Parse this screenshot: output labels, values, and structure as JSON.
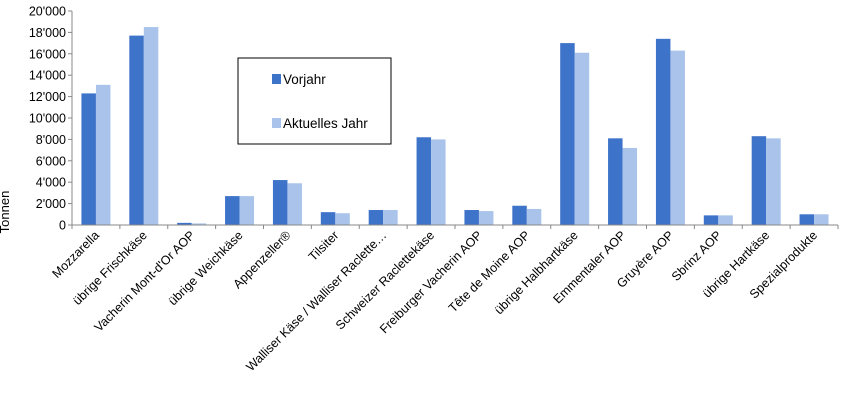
{
  "chart_data": {
    "type": "bar",
    "title": "",
    "xlabel": "",
    "ylabel": "Tonnen",
    "ylim": [
      0,
      20000
    ],
    "ytick_labels": [
      "0",
      "2'000",
      "4'000",
      "6'000",
      "8'000",
      "10'000",
      "12'000",
      "14'000",
      "16'000",
      "18'000",
      "20'000"
    ],
    "grid": false,
    "legend_position": "upper-left-center",
    "categories": [
      "Mozzarella",
      "übrige Frischkäse",
      "Vacherin Mont-d'Or AOP",
      "übrige Weichkäse",
      "Appenzeller®",
      "Tilsiter",
      "Walliser Käse / Walliser Raclette…",
      "Schweizer Raclettekäse",
      "Freiburger Vacherin AOP",
      "Tête de Moine AOP",
      "übrige Halbhartkäse",
      "Emmentaler AOP",
      "Gruyère AOP",
      "Sbrinz AOP",
      "übrige Hartkäse",
      "Spezialprodukte"
    ],
    "series": [
      {
        "name": "Vorjahr",
        "color": "#3d73c9",
        "values": [
          12300,
          17700,
          200,
          2700,
          4200,
          1200,
          1400,
          8200,
          1400,
          1800,
          17000,
          8100,
          17400,
          900,
          8300,
          1000
        ]
      },
      {
        "name": "Aktuelles Jahr",
        "color": "#a9c3ea",
        "values": [
          13100,
          18500,
          150,
          2700,
          3900,
          1100,
          1400,
          8000,
          1300,
          1500,
          16100,
          7200,
          16300,
          900,
          8100,
          1000
        ]
      }
    ]
  }
}
